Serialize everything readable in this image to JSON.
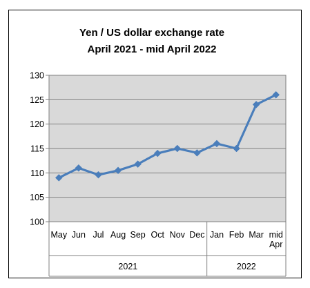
{
  "chart_data": {
    "type": "line",
    "title": "Yen / US dollar exchange rate",
    "subtitle": "April 2021  - mid April 2022",
    "xlabel": "",
    "ylabel": "",
    "ylim": [
      100,
      130
    ],
    "yticks": [
      100,
      105,
      110,
      115,
      120,
      125,
      130
    ],
    "grid": true,
    "legend": "none",
    "categories": [
      {
        "label": [
          "May"
        ]
      },
      {
        "label": [
          "Jun"
        ]
      },
      {
        "label": [
          "Jul"
        ]
      },
      {
        "label": [
          "Aug"
        ]
      },
      {
        "label": [
          "Sep"
        ]
      },
      {
        "label": [
          "Oct"
        ]
      },
      {
        "label": [
          "Nov"
        ]
      },
      {
        "label": [
          "Dec"
        ]
      },
      {
        "label": [
          "Jan"
        ]
      },
      {
        "label": [
          "Feb"
        ]
      },
      {
        "label": [
          "Mar"
        ]
      },
      {
        "label": [
          "mid",
          "Apr"
        ]
      }
    ],
    "groups": [
      {
        "label": "2021",
        "span": [
          0,
          7
        ]
      },
      {
        "label": "2022",
        "span": [
          8,
          11
        ]
      }
    ],
    "series": [
      {
        "values": [
          109.0,
          111.0,
          109.6,
          110.5,
          111.8,
          114.0,
          115.0,
          114.1,
          116.0,
          115.0,
          124.0,
          126.0
        ]
      }
    ],
    "colors": {
      "line": "#4a7ebb",
      "plot_bg": "#d9d9d9",
      "grid": "#808080"
    }
  }
}
